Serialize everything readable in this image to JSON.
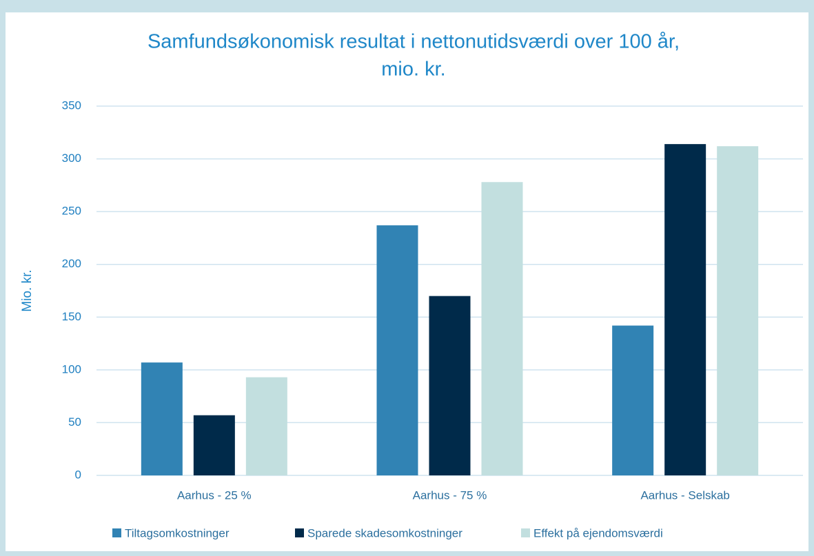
{
  "chart_data": {
    "type": "bar",
    "title": [
      "Samfundsøkonomisk resultat i nettonutidsværdi over 100 år,",
      "mio. kr."
    ],
    "y_label": "Mio. kr.",
    "categories": [
      "Aarhus - 25 %",
      "Aarhus - 75 %",
      "Aarhus - Selskab"
    ],
    "series": [
      {
        "name": "Tiltagsomkostninger",
        "color": "#3183b4",
        "values": [
          107,
          237,
          142
        ]
      },
      {
        "name": "Sparede skadesomkostninger",
        "color": "#002a4a",
        "values": [
          57,
          170,
          314
        ]
      },
      {
        "name": "Effekt på ejendomsværdi",
        "color": "#c2dfdf",
        "values": [
          93,
          278,
          312
        ]
      }
    ],
    "ylim": [
      0,
      350
    ],
    "yticks": [
      0,
      50,
      100,
      150,
      200,
      250,
      300,
      350
    ],
    "grid": true,
    "legend": "bottom"
  }
}
